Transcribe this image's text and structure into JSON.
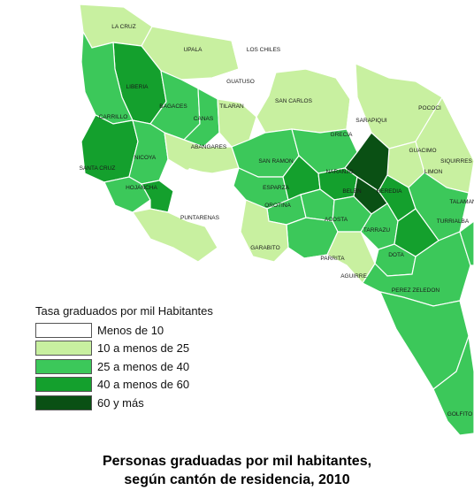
{
  "legend": {
    "title": "Tasa graduados por mil Habitantes",
    "items": [
      {
        "label": "Menos de 10",
        "color": "#ffffff"
      },
      {
        "label": "10 a menos de 25",
        "color": "#c8f0a0"
      },
      {
        "label": "25 a menos de 40",
        "color": "#3cc85a"
      },
      {
        "label": "40 a menos de 60",
        "color": "#14a02d"
      },
      {
        "label": "60 y más",
        "color": "#0a5014"
      }
    ]
  },
  "caption": {
    "line1": "Personas graduadas por mil habitantes,",
    "line2": "según cantón de residencia, 2010"
  },
  "cantons": [
    {
      "name": "LA CRUZ",
      "class": 1
    },
    {
      "name": "UPALA",
      "class": 1
    },
    {
      "name": "LOS CHILES",
      "class": 0
    },
    {
      "name": "GUATUSO",
      "class": 0
    },
    {
      "name": "LIBERIA",
      "class": 3
    },
    {
      "name": "BAGACES",
      "class": 2
    },
    {
      "name": "CANAS",
      "class": 2
    },
    {
      "name": "TILARAN",
      "class": 1
    },
    {
      "name": "SAN CARLOS",
      "class": 1
    },
    {
      "name": "SARAPIQUI",
      "class": 0
    },
    {
      "name": "POCOCI",
      "class": 1
    },
    {
      "name": "CARRILLO",
      "class": 2
    },
    {
      "name": "GRECIA",
      "class": 2
    },
    {
      "name": "GUACIMO",
      "class": 1
    },
    {
      "name": "SIQUIRRES",
      "class": 1
    },
    {
      "name": "SANTA CRUZ",
      "class": 3
    },
    {
      "name": "NICOYA",
      "class": 2
    },
    {
      "name": "ABANGARES",
      "class": 1
    },
    {
      "name": "SAN RAMON",
      "class": 2
    },
    {
      "name": "HOJANCHA",
      "class": 2
    },
    {
      "name": "PUNTARENAS",
      "class": 1
    },
    {
      "name": "ESPARZA",
      "class": 2
    },
    {
      "name": "NARANJO",
      "class": 2
    },
    {
      "name": "BELEN",
      "class": 3
    },
    {
      "name": "HEREDIA",
      "class": 4
    },
    {
      "name": "TURRIALBA",
      "class": 2
    },
    {
      "name": "OROTINA",
      "class": 2
    },
    {
      "name": "ACOSTA",
      "class": 2
    },
    {
      "name": "TARRAZU",
      "class": 2
    },
    {
      "name": "DOTA",
      "class": 2
    },
    {
      "name": "GARABITO",
      "class": 1
    },
    {
      "name": "PARRITA",
      "class": 0
    },
    {
      "name": "AGUIRRE",
      "class": 1
    },
    {
      "name": "PEREZ ZELEDON",
      "class": 2
    },
    {
      "name": "GOLFITO",
      "class": 2
    },
    {
      "name": "LIMON",
      "class": 2
    },
    {
      "name": "TALAMANCA",
      "class": 2
    }
  ]
}
